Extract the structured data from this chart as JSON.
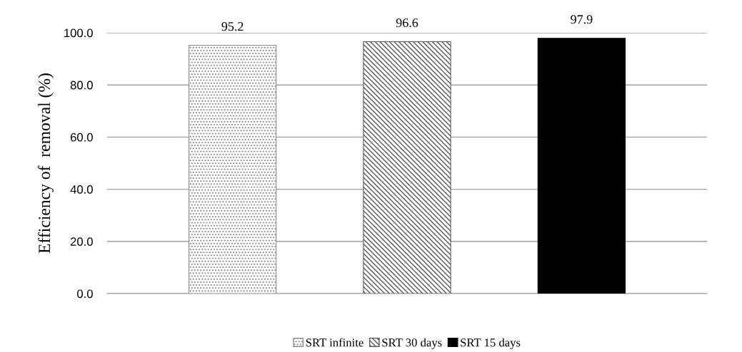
{
  "chart_data": {
    "type": "bar",
    "ylabel": "Efficiency of  removal (%)",
    "categories": [
      null
    ],
    "series": [
      {
        "name": "SRT infinite",
        "color": "#8c8c8c",
        "values": [
          95.2
        ]
      },
      {
        "name": "SRT 30 days",
        "color": "#5a5a5a",
        "values": [
          96.6
        ]
      },
      {
        "name": "SRT 15 days",
        "color": "#000000",
        "values": [
          97.9
        ]
      }
    ],
    "ylim": [
      0,
      100
    ],
    "yticks": [
      {
        "value": 0,
        "label": "0.0"
      },
      {
        "value": 20,
        "label": "20.0"
      },
      {
        "value": 40,
        "label": "40.0"
      },
      {
        "value": 60,
        "label": "60.0"
      },
      {
        "value": 80,
        "label": "80.0"
      },
      {
        "value": 100,
        "label": "100.0"
      }
    ],
    "grid": "y",
    "legend": "bottom",
    "data_labels": true
  }
}
